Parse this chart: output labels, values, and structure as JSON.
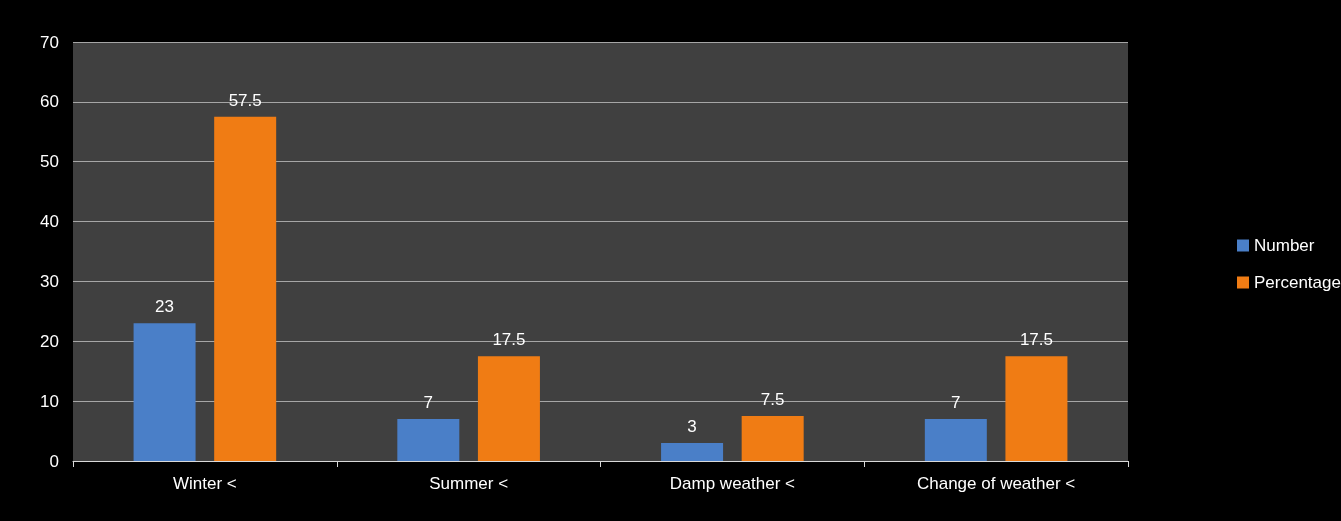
{
  "chart_data": {
    "type": "bar",
    "categories": [
      "Winter <",
      "Summer <",
      "Damp weather <",
      "Change of weather <"
    ],
    "series": [
      {
        "name": "Number",
        "color": "#4a7fc8",
        "values": [
          23,
          7,
          3,
          7
        ]
      },
      {
        "name": "Percentage",
        "color": "#f07c14",
        "values": [
          57.5,
          17.5,
          7.5,
          17.5
        ]
      }
    ],
    "ylim": [
      0,
      70
    ],
    "yticks": [
      0,
      10,
      20,
      30,
      40,
      50,
      60,
      70
    ],
    "grid": "y",
    "legend": "right",
    "data_labels": true
  }
}
